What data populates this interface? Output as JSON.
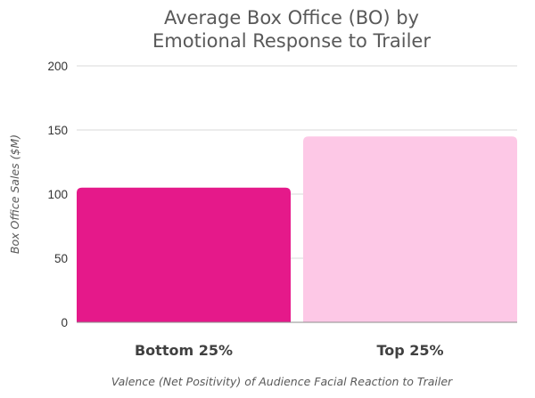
{
  "chart_data": {
    "type": "bar",
    "title_lines": [
      "Average Box Office (BO) by",
      "Emotional Response to Trailer"
    ],
    "categories": [
      "Bottom 25%",
      "Top 25%"
    ],
    "values": [
      105,
      145
    ],
    "colors": [
      "#e5198a",
      "#fdc8e6"
    ],
    "xlabel": "Valence (Net Positivity) of Audience Facial Reaction to Trailer",
    "ylabel": "Box Office Sales ($M)",
    "ylim": [
      0,
      200
    ],
    "yticks": [
      0,
      50,
      100,
      150,
      200
    ],
    "grid": true,
    "legend": "none"
  }
}
